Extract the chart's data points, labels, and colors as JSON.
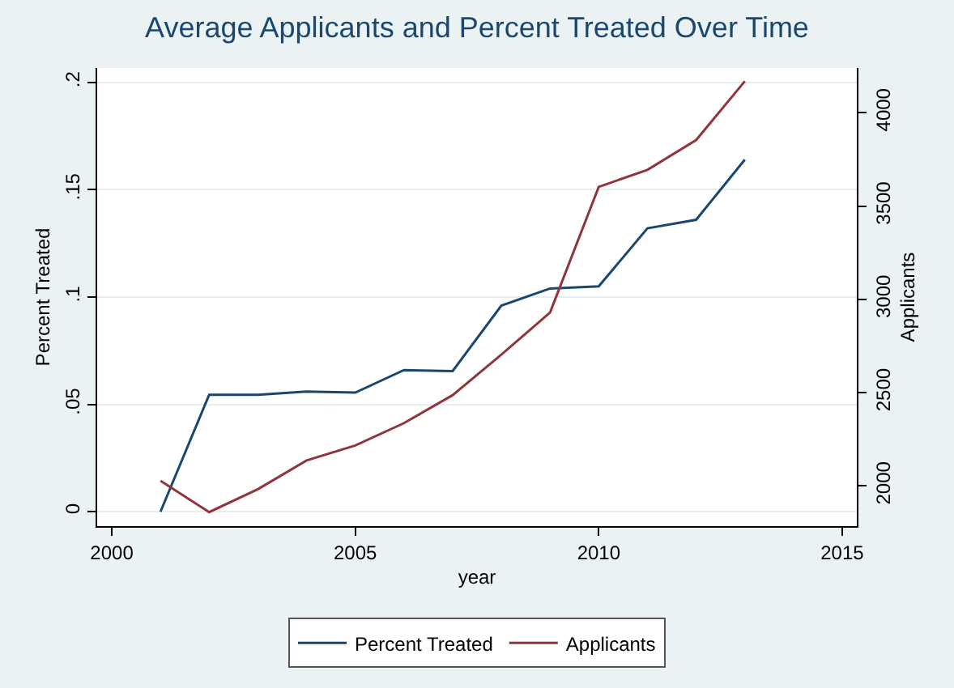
{
  "chart_data": {
    "type": "line",
    "title": "Average Applicants and Percent Treated Over Time",
    "xlabel": "year",
    "ylabel": "Percent Treated",
    "y2label": "Applicants",
    "x": [
      2001,
      2002,
      2003,
      2004,
      2005,
      2006,
      2007,
      2008,
      2009,
      2010,
      2011,
      2012,
      2013
    ],
    "series": [
      {
        "name": "Percent Treated",
        "color": "#1a476f",
        "values": [
          0,
          0.0545,
          0.0545,
          0.056,
          0.0555,
          0.066,
          0.0655,
          0.096,
          0.104,
          0.105,
          0.132,
          0.136,
          0.164
        ]
      },
      {
        "name": "Applicants",
        "color": "#90353b",
        "axis": "y2",
        "values": [
          2028,
          1860,
          1983,
          2137,
          2217,
          2337,
          2487,
          2704,
          2930,
          3603,
          3694,
          3854,
          4169
        ]
      }
    ],
    "xlim": [
      1999.7,
      2015.3
    ],
    "xticks": [
      2000,
      2005,
      2010,
      2015
    ],
    "ylim": [
      -0.0067,
      0.2067
    ],
    "yticks": [
      {
        "value": 0,
        "label": "0"
      },
      {
        "value": 0.05,
        "label": ".05"
      },
      {
        "value": 0.1,
        "label": ".1"
      },
      {
        "value": 0.15,
        "label": ".15"
      },
      {
        "value": 0.2,
        "label": ".2"
      }
    ],
    "y2lim": [
      1785,
      4240
    ],
    "y2ticks": [
      2000,
      2500,
      3000,
      3500,
      4000
    ],
    "grid": "y",
    "legend": "bottom",
    "marker": "none",
    "line_style": "solid"
  }
}
